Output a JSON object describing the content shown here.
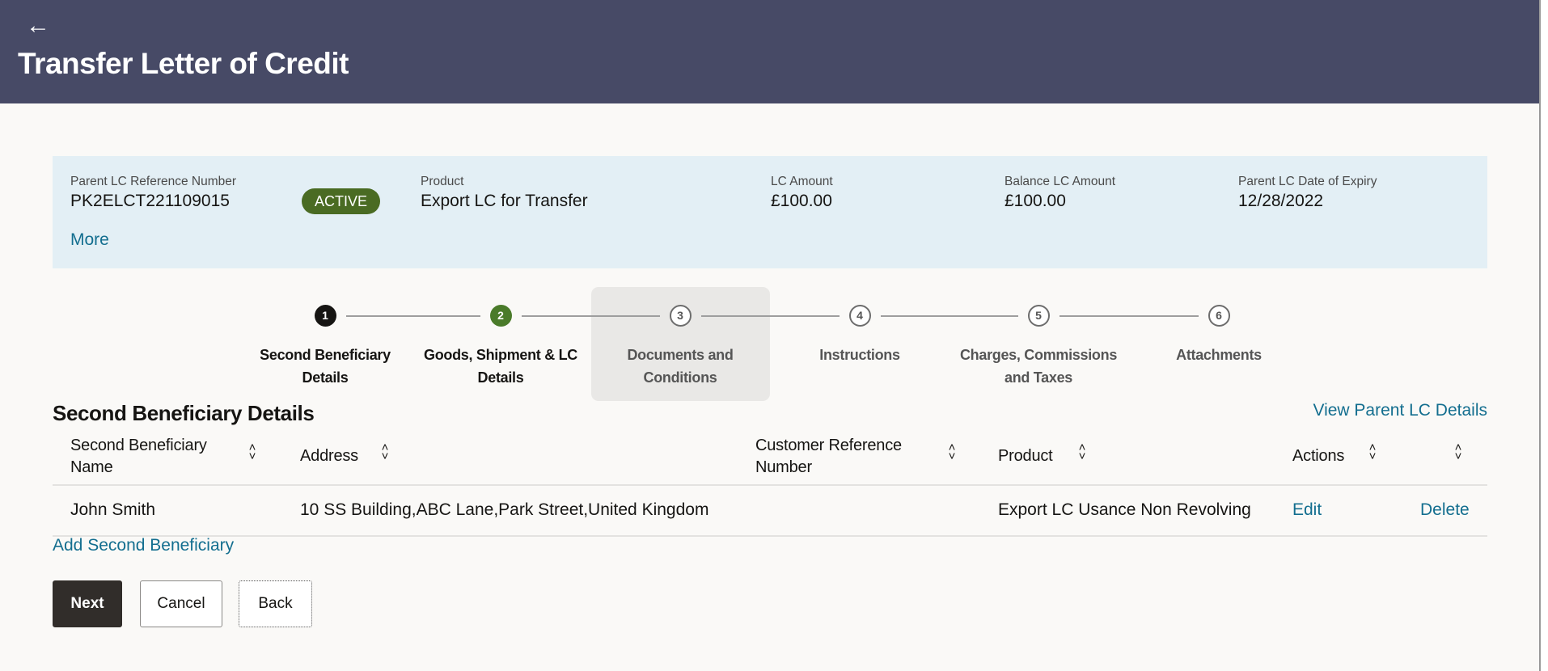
{
  "header": {
    "back_icon": "arrow-left-icon",
    "title": "Transfer Letter of Credit"
  },
  "summary": {
    "parent_ref_label": "Parent LC Reference Number",
    "parent_ref_value": "PK2ELCT221109015",
    "status_badge": "ACTIVE",
    "product_label": "Product",
    "product_value": "Export LC for Transfer",
    "amount_label": "LC Amount",
    "amount_value": "£100.00",
    "balance_label": "Balance LC Amount",
    "balance_value": "£100.00",
    "expiry_label": "Parent LC Date of Expiry",
    "expiry_value": "12/28/2022",
    "more_link": "More"
  },
  "stepper": {
    "steps": [
      {
        "number": "1",
        "label_line1": "Second Beneficiary",
        "label_line2": "Details",
        "state": "done"
      },
      {
        "number": "2",
        "label_line1": "Goods, Shipment & LC",
        "label_line2": "Details",
        "state": "current"
      },
      {
        "number": "3",
        "label_line1": "Documents and",
        "label_line2": "Conditions",
        "state": "todo"
      },
      {
        "number": "4",
        "label_line1": "Instructions",
        "label_line2": "",
        "state": "todo"
      },
      {
        "number": "5",
        "label_line1": "Charges, Commissions",
        "label_line2": "and Taxes",
        "state": "todo"
      },
      {
        "number": "6",
        "label_line1": "Attachments",
        "label_line2": "",
        "state": "todo"
      }
    ]
  },
  "section": {
    "title": "Second Beneficiary Details",
    "view_parent_link": "View Parent LC Details",
    "table": {
      "columns": [
        {
          "line1": "Second Beneficiary",
          "line2": "Name"
        },
        {
          "line1": "Address",
          "line2": ""
        },
        {
          "line1": "Customer Reference",
          "line2": "Number"
        },
        {
          "line1": "Product",
          "line2": ""
        },
        {
          "line1": "Actions",
          "line2": ""
        }
      ],
      "rows": [
        {
          "name": "John Smith",
          "address": "10 SS Building,ABC Lane,Park Street,United Kingdom",
          "customer_ref": "",
          "product": "Export LC Usance Non Revolving",
          "edit": "Edit",
          "delete": "Delete"
        }
      ]
    },
    "add_link": "Add Second Beneficiary"
  },
  "buttons": {
    "next": "Next",
    "cancel": "Cancel",
    "back": "Back"
  },
  "colors": {
    "header": "#474a66",
    "info_bg": "#e3eff5",
    "badge": "#4a6b23",
    "link": "#136e8f",
    "step_current": "#4a7b2a",
    "primary_button": "#312d2a"
  }
}
